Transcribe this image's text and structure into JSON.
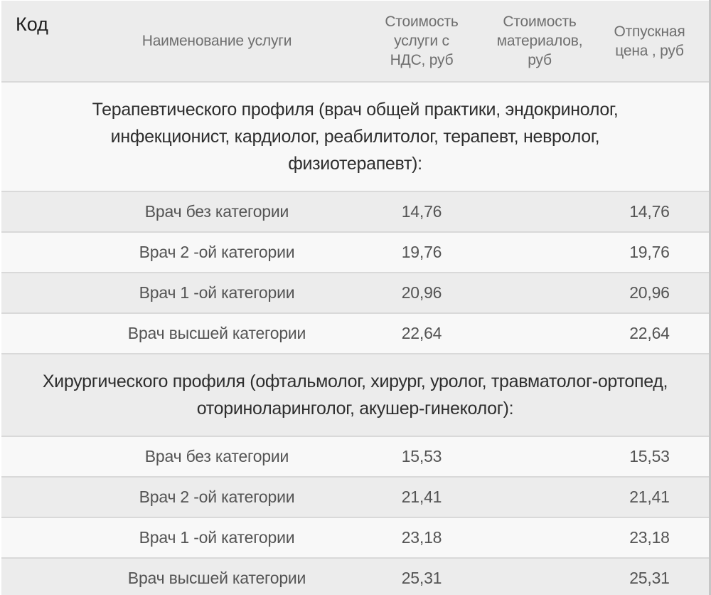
{
  "table": {
    "columns": [
      {
        "key": "code",
        "label": "Код"
      },
      {
        "key": "name",
        "label": "Наименование услуги"
      },
      {
        "key": "cost_vat",
        "label": "Стоимость\nуслуги с\nНДС, руб"
      },
      {
        "key": "materials",
        "label": "Стоимость\nматериалов,\nруб"
      },
      {
        "key": "price",
        "label": "Отпускная\nцена , руб"
      }
    ],
    "sections": [
      {
        "title": "Терапевтического профиля (врач общей практики, эндокринолог,\nинфекционист, кардиолог, реабилитолог, терапевт, невролог,\nфизиотерапевт):",
        "rows": [
          {
            "code": "",
            "name": "Врач без категории",
            "cost_vat": "14,76",
            "materials": "",
            "price": "14,76"
          },
          {
            "code": "",
            "name": "Врач 2 -ой категории",
            "cost_vat": "19,76",
            "materials": "",
            "price": "19,76"
          },
          {
            "code": "",
            "name": "Врач 1 -ой категории",
            "cost_vat": "20,96",
            "materials": "",
            "price": "20,96"
          },
          {
            "code": "",
            "name": "Врач высшей категории",
            "cost_vat": "22,64",
            "materials": "",
            "price": "22,64"
          }
        ]
      },
      {
        "title": "Хирургического профиля (офтальмолог, хирург, уролог, травматолог-ортопед,\nоториноларинголог, акушер-гинеколог):",
        "rows": [
          {
            "code": "",
            "name": "Врач без категории",
            "cost_vat": "15,53",
            "materials": "",
            "price": "15,53"
          },
          {
            "code": "",
            "name": "Врач 2 -ой категории",
            "cost_vat": "21,41",
            "materials": "",
            "price": "21,41"
          },
          {
            "code": "",
            "name": "Врач 1 -ой категории",
            "cost_vat": "23,18",
            "materials": "",
            "price": "23,18"
          },
          {
            "code": "",
            "name": "Врач высшей категории",
            "cost_vat": "25,31",
            "materials": "",
            "price": "25,31"
          }
        ]
      }
    ]
  },
  "colors": {
    "stripe_light": "#f8f8f8",
    "stripe_gray": "#ececec",
    "header_bg": "#ececec",
    "row_border": "#d9d9d9",
    "header_text": "#6f6f6f",
    "code_header_text": "#1f1f1f",
    "section_text": "#2e2e2e",
    "cell_text": "#545454",
    "right_edge": "#c6c6c6"
  }
}
